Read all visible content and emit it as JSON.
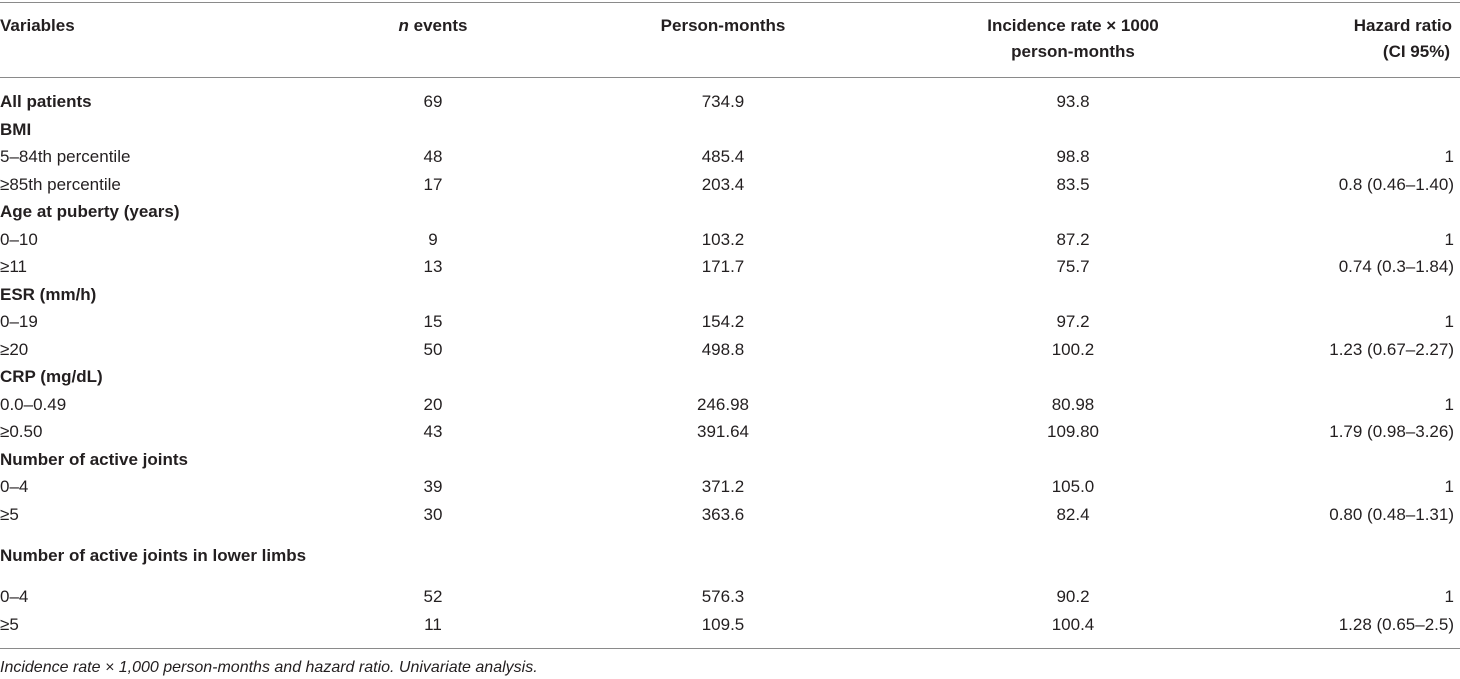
{
  "header": {
    "col_variables": "Variables",
    "col_events_italic": "n",
    "col_events_rest": " events",
    "col_person_months": "Person-months",
    "col_incidence_line1": "Incidence rate × 1000",
    "col_incidence_line2": "person-months",
    "col_hazard_line1": "Hazard ratio",
    "col_hazard_line2": "(CI 95%)"
  },
  "rows": [
    {
      "label": "All patients",
      "events": "69",
      "pm": "734.9",
      "ir": "93.8",
      "hr": ""
    },
    {
      "label": "BMI",
      "events": "",
      "pm": "",
      "ir": "",
      "hr": ""
    },
    {
      "label": "5–84th percentile",
      "events": "48",
      "pm": "485.4",
      "ir": "98.8",
      "hr": "1"
    },
    {
      "label": "≥85th percentile",
      "events": "17",
      "pm": "203.4",
      "ir": "83.5",
      "hr": "0.8 (0.46–1.40)"
    },
    {
      "label": "Age at puberty (years)",
      "events": "",
      "pm": "",
      "ir": "",
      "hr": ""
    },
    {
      "label": "0–10",
      "events": "9",
      "pm": "103.2",
      "ir": "87.2",
      "hr": "1"
    },
    {
      "label": "≥11",
      "events": "13",
      "pm": "171.7",
      "ir": "75.7",
      "hr": "0.74 (0.3–1.84)"
    },
    {
      "label": "ESR (mm/h)",
      "events": "",
      "pm": "",
      "ir": "",
      "hr": ""
    },
    {
      "label": "0–19",
      "events": "15",
      "pm": "154.2",
      "ir": "97.2",
      "hr": "1"
    },
    {
      "label": "≥20",
      "events": "50",
      "pm": "498.8",
      "ir": "100.2",
      "hr": "1.23 (0.67–2.27)"
    },
    {
      "label": "CRP (mg/dL)",
      "events": "",
      "pm": "",
      "ir": "",
      "hr": ""
    },
    {
      "label": "0.0–0.49",
      "events": "20",
      "pm": "246.98",
      "ir": "80.98",
      "hr": "1"
    },
    {
      "label": "≥0.50",
      "events": "43",
      "pm": "391.64",
      "ir": "109.80",
      "hr": "1.79 (0.98–3.26)"
    },
    {
      "label": "Number of active joints",
      "events": "",
      "pm": "",
      "ir": "",
      "hr": ""
    },
    {
      "label": "0–4",
      "events": "39",
      "pm": "371.2",
      "ir": "105.0",
      "hr": "1"
    },
    {
      "label": "≥5",
      "events": "30",
      "pm": "363.6",
      "ir": "82.4",
      "hr": "0.80 (0.48–1.31)"
    },
    {
      "label": "Number of active joints in lower limbs",
      "events": "",
      "pm": "",
      "ir": "",
      "hr": ""
    },
    {
      "label": "0–4",
      "events": "52",
      "pm": "576.3",
      "ir": "90.2",
      "hr": "1"
    },
    {
      "label": "≥5",
      "events": "11",
      "pm": "109.5",
      "ir": "100.4",
      "hr": "1.28 (0.65–2.5)"
    }
  ],
  "footnote": "Incidence rate × 1,000 person-months and hazard ratio. Univariate analysis."
}
